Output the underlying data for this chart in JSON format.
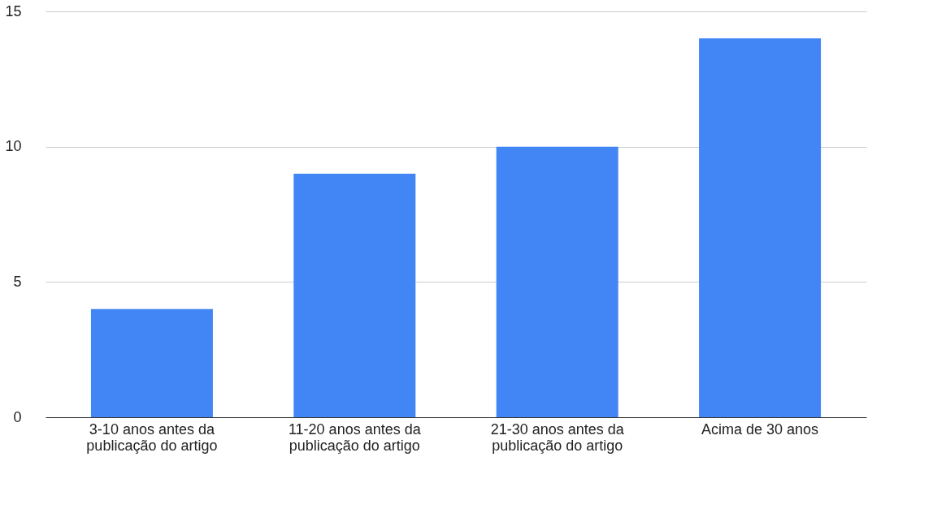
{
  "chart_data": {
    "type": "bar",
    "categories": [
      "3-10 anos antes da\npublicação do artigo",
      "11-20 anos antes da\npublicação do artigo",
      "21-30 anos antes da\npublicação do artigo",
      "Acima de 30 anos"
    ],
    "values": [
      4,
      9,
      10,
      14
    ],
    "color": "#4285f4",
    "ylim": [
      0,
      15
    ],
    "yticks": [
      0,
      5,
      10,
      15
    ],
    "grid": "y"
  }
}
